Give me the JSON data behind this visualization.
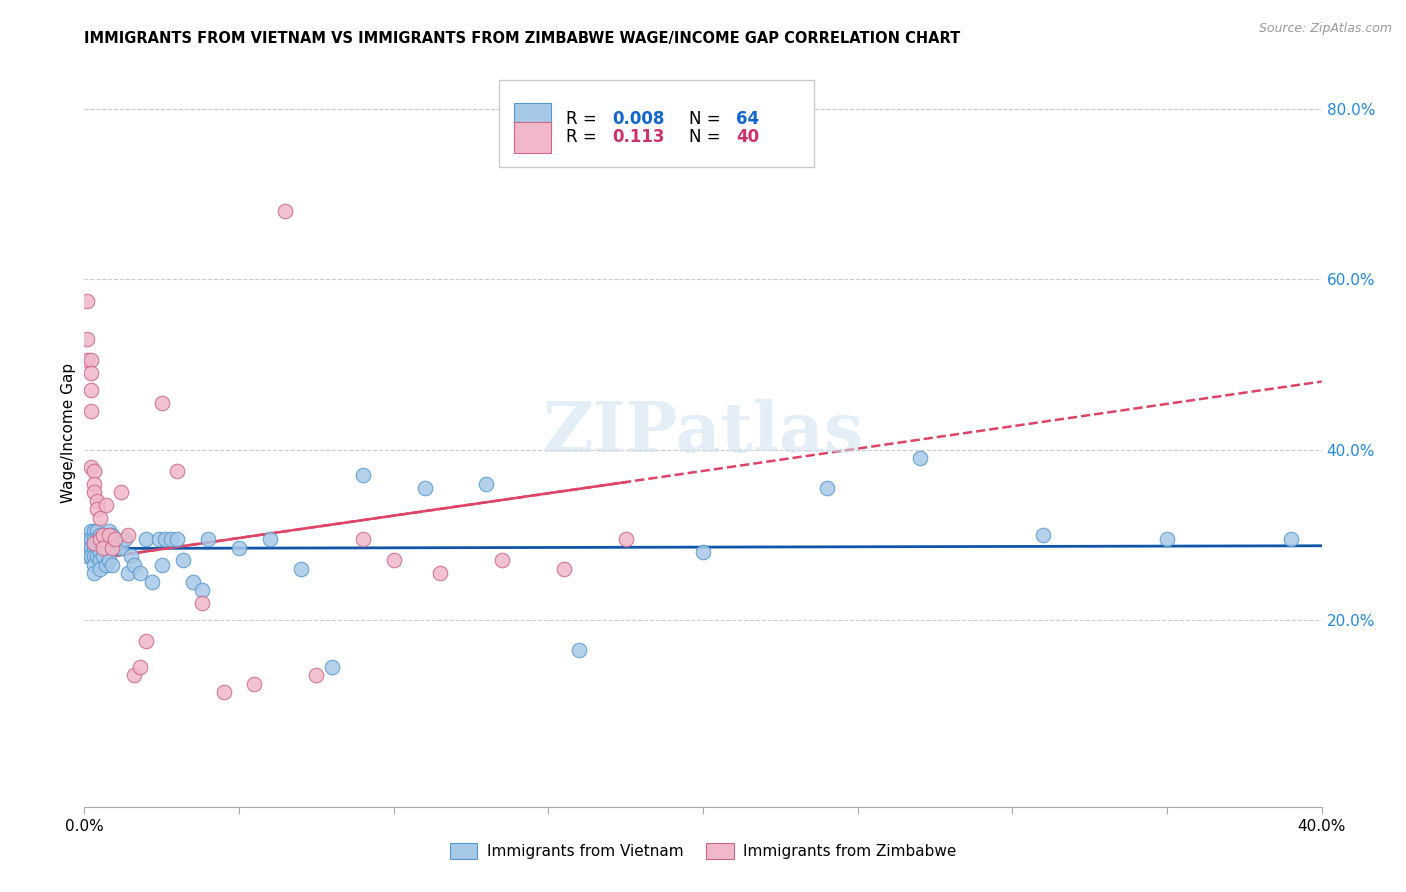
{
  "title": "IMMIGRANTS FROM VIETNAM VS IMMIGRANTS FROM ZIMBABWE WAGE/INCOME GAP CORRELATION CHART",
  "source": "Source: ZipAtlas.com",
  "ylabel": "Wage/Income Gap",
  "ylabel_right_ticks": [
    "20.0%",
    "40.0%",
    "60.0%",
    "80.0%"
  ],
  "ylabel_right_vals": [
    0.2,
    0.4,
    0.6,
    0.8
  ],
  "vietnam_color": "#a8c8e8",
  "vietnam_edge": "#5599cc",
  "zimbabwe_color": "#f0b8c8",
  "zimbabwe_edge": "#cc6688",
  "trend_vietnam_color": "#1155aa",
  "trend_zimbabwe_color": "#dd4466",
  "watermark": "ZIPatlas",
  "xlim": [
    0.0,
    0.4
  ],
  "ylim": [
    -0.02,
    0.86
  ],
  "vietnam_x": [
    0.001,
    0.001,
    0.001,
    0.002,
    0.002,
    0.002,
    0.002,
    0.003,
    0.003,
    0.003,
    0.003,
    0.003,
    0.003,
    0.004,
    0.004,
    0.004,
    0.004,
    0.005,
    0.005,
    0.005,
    0.005,
    0.005,
    0.006,
    0.006,
    0.007,
    0.007,
    0.007,
    0.008,
    0.008,
    0.009,
    0.009,
    0.01,
    0.011,
    0.012,
    0.013,
    0.014,
    0.015,
    0.016,
    0.018,
    0.02,
    0.022,
    0.024,
    0.025,
    0.026,
    0.028,
    0.03,
    0.032,
    0.035,
    0.038,
    0.04,
    0.05,
    0.06,
    0.07,
    0.08,
    0.09,
    0.11,
    0.13,
    0.16,
    0.2,
    0.24,
    0.27,
    0.31,
    0.35,
    0.39
  ],
  "vietnam_y": [
    0.295,
    0.285,
    0.275,
    0.305,
    0.295,
    0.285,
    0.275,
    0.305,
    0.295,
    0.285,
    0.275,
    0.265,
    0.255,
    0.305,
    0.295,
    0.285,
    0.275,
    0.3,
    0.29,
    0.28,
    0.27,
    0.26,
    0.295,
    0.275,
    0.295,
    0.285,
    0.265,
    0.305,
    0.27,
    0.3,
    0.265,
    0.285,
    0.29,
    0.285,
    0.295,
    0.255,
    0.275,
    0.265,
    0.255,
    0.295,
    0.245,
    0.295,
    0.265,
    0.295,
    0.295,
    0.295,
    0.27,
    0.245,
    0.235,
    0.295,
    0.285,
    0.295,
    0.26,
    0.145,
    0.37,
    0.355,
    0.36,
    0.165,
    0.28,
    0.355,
    0.39,
    0.3,
    0.295,
    0.295
  ],
  "zimbabwe_x": [
    0.001,
    0.001,
    0.001,
    0.002,
    0.002,
    0.002,
    0.002,
    0.002,
    0.003,
    0.003,
    0.003,
    0.003,
    0.004,
    0.004,
    0.005,
    0.005,
    0.006,
    0.006,
    0.007,
    0.008,
    0.009,
    0.01,
    0.012,
    0.014,
    0.016,
    0.018,
    0.02,
    0.025,
    0.03,
    0.038,
    0.045,
    0.055,
    0.065,
    0.075,
    0.09,
    0.1,
    0.115,
    0.135,
    0.155,
    0.175
  ],
  "zimbabwe_y": [
    0.575,
    0.53,
    0.505,
    0.505,
    0.49,
    0.47,
    0.445,
    0.38,
    0.375,
    0.36,
    0.35,
    0.29,
    0.34,
    0.33,
    0.32,
    0.295,
    0.3,
    0.285,
    0.335,
    0.3,
    0.285,
    0.295,
    0.35,
    0.3,
    0.135,
    0.145,
    0.175,
    0.455,
    0.375,
    0.22,
    0.115,
    0.125,
    0.68,
    0.135,
    0.295,
    0.27,
    0.255,
    0.27,
    0.26,
    0.295
  ]
}
